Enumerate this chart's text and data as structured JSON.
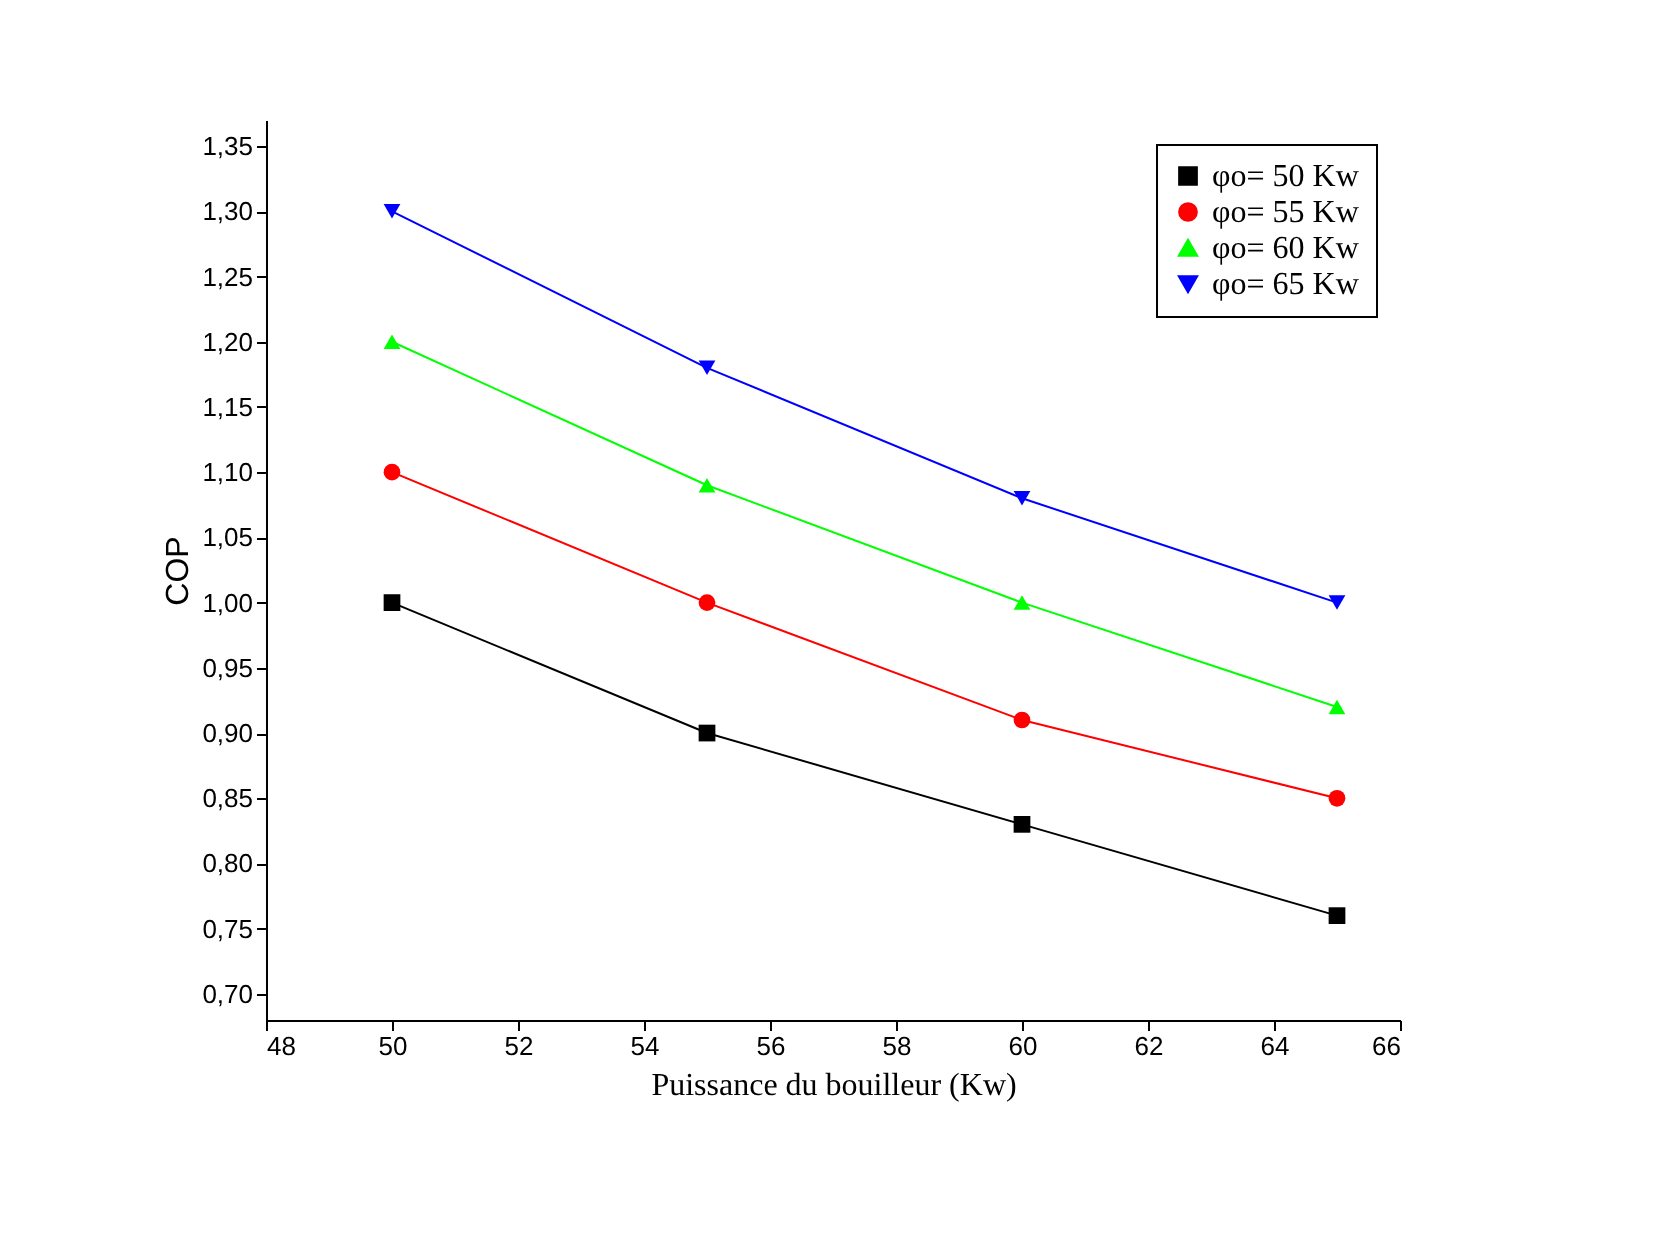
{
  "chart_data": {
    "type": "line",
    "xlabel": "Puissance du bouilleur (Kw)",
    "ylabel": "COP",
    "x": [
      50,
      55,
      60,
      65
    ],
    "series": [
      {
        "name": "φo= 50 Kw",
        "color": "#000000",
        "marker": "square",
        "values": [
          1.0,
          0.9,
          0.83,
          0.76
        ]
      },
      {
        "name": "φo= 55 Kw",
        "color": "#ff0000",
        "marker": "circle",
        "values": [
          1.1,
          1.0,
          0.91,
          0.85
        ]
      },
      {
        "name": "φo= 60 Kw",
        "color": "#00ff00",
        "marker": "triangle",
        "values": [
          1.2,
          1.09,
          1.0,
          0.92
        ]
      },
      {
        "name": "φo= 65 Kw",
        "color": "#0000ff",
        "marker": "triangle-down",
        "values": [
          1.3,
          1.18,
          1.08,
          1.0
        ]
      }
    ],
    "xlim": [
      48,
      66
    ],
    "xticks": [
      48,
      50,
      52,
      54,
      56,
      58,
      60,
      62,
      64,
      66
    ],
    "ylim": [
      0.68,
      1.37
    ],
    "yticks": [
      {
        "value": 0.7,
        "label": "0,70"
      },
      {
        "value": 0.75,
        "label": "0,75"
      },
      {
        "value": 0.8,
        "label": "0,80"
      },
      {
        "value": 0.85,
        "label": "0,85"
      },
      {
        "value": 0.9,
        "label": "0,90"
      },
      {
        "value": 0.95,
        "label": "0,95"
      },
      {
        "value": 1.0,
        "label": "1,00"
      },
      {
        "value": 1.05,
        "label": "1,05"
      },
      {
        "value": 1.1,
        "label": "1,10"
      },
      {
        "value": 1.15,
        "label": "1,15"
      },
      {
        "value": 1.2,
        "label": "1,20"
      },
      {
        "value": 1.25,
        "label": "1,25"
      },
      {
        "value": 1.3,
        "label": "1,30"
      },
      {
        "value": 1.35,
        "label": "1,35"
      }
    ],
    "grid": false,
    "legend": "top right",
    "line_style": "solid"
  }
}
